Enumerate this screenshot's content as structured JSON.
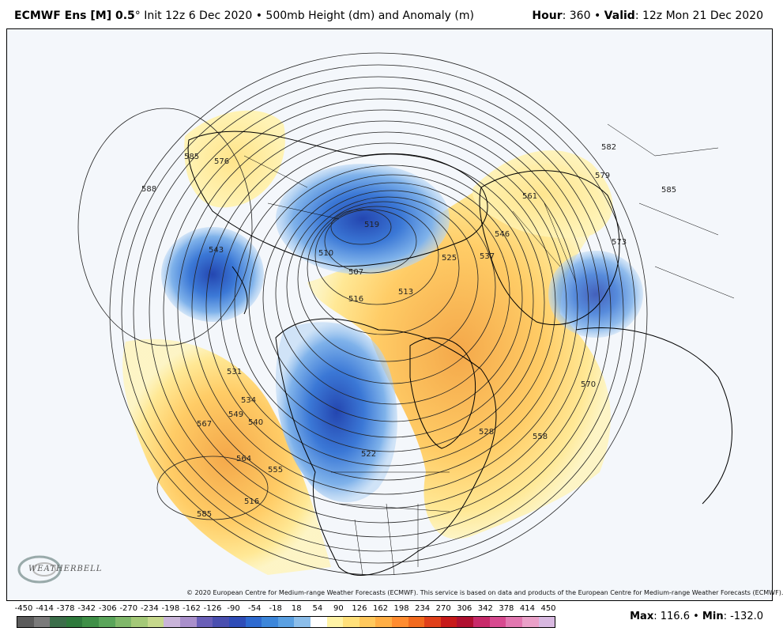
{
  "header": {
    "model": "ECMWF Ens [M] 0.5",
    "degree": "°",
    "init": "Init 12z 6 Dec 2020",
    "bullet": "•",
    "product": "500mb Height (dm) and Anomaly (m)",
    "hour_label": "Hour",
    "hour_value": ": 360",
    "valid_label": "Valid",
    "valid_value": ": 12z Mon 21 Dec 2020"
  },
  "copyright": "© 2020 European Centre for Medium-range Weather Forecasts (ECMWF). This service is based on data and products of the European Centre for Medium-range Weather Forecasts (ECMWF).",
  "logo": {
    "text": "WEATHERBELL"
  },
  "contour_labels": [
    "585",
    "576",
    "588",
    "543",
    "531",
    "534",
    "540",
    "549",
    "567",
    "564",
    "555",
    "585",
    "516",
    "519",
    "510",
    "507",
    "513",
    "525",
    "537",
    "546",
    "561",
    "579",
    "582",
    "585",
    "573",
    "570",
    "558",
    "528",
    "522",
    "516"
  ],
  "legend": {
    "ticks": [
      "-450",
      "-414",
      "-378",
      "-342",
      "-306",
      "-270",
      "-234",
      "-198",
      "-162",
      "-126",
      "-90",
      "-54",
      "-18",
      "18",
      "54",
      "90",
      "126",
      "162",
      "198",
      "234",
      "270",
      "306",
      "342",
      "378",
      "414",
      "450"
    ],
    "colors": [
      "#5b5b5b",
      "#7a7a7a",
      "#3c6e4a",
      "#2f7a3d",
      "#3f8f47",
      "#5aa55a",
      "#80b86a",
      "#a4c978",
      "#c6d88c",
      "#c9b4d9",
      "#a98fcb",
      "#6a5fb8",
      "#4a4fb0",
      "#2f4db8",
      "#2e6ad0",
      "#3c86da",
      "#5aa0e2",
      "#8cbeea",
      "#ffffff",
      "#fff3a6",
      "#ffe07a",
      "#ffc85c",
      "#ffae45",
      "#ff8c30",
      "#f26a1e",
      "#e0401a",
      "#c81a1a",
      "#b01030",
      "#c82a6a",
      "#d84a90",
      "#e277b0",
      "#eaa0c8",
      "#d8b8e0"
    ]
  },
  "stats": {
    "max_label": "Max",
    "max_value": ": 116.6",
    "bullet": "•",
    "min_label": "Min",
    "min_value": ": -132.0"
  }
}
